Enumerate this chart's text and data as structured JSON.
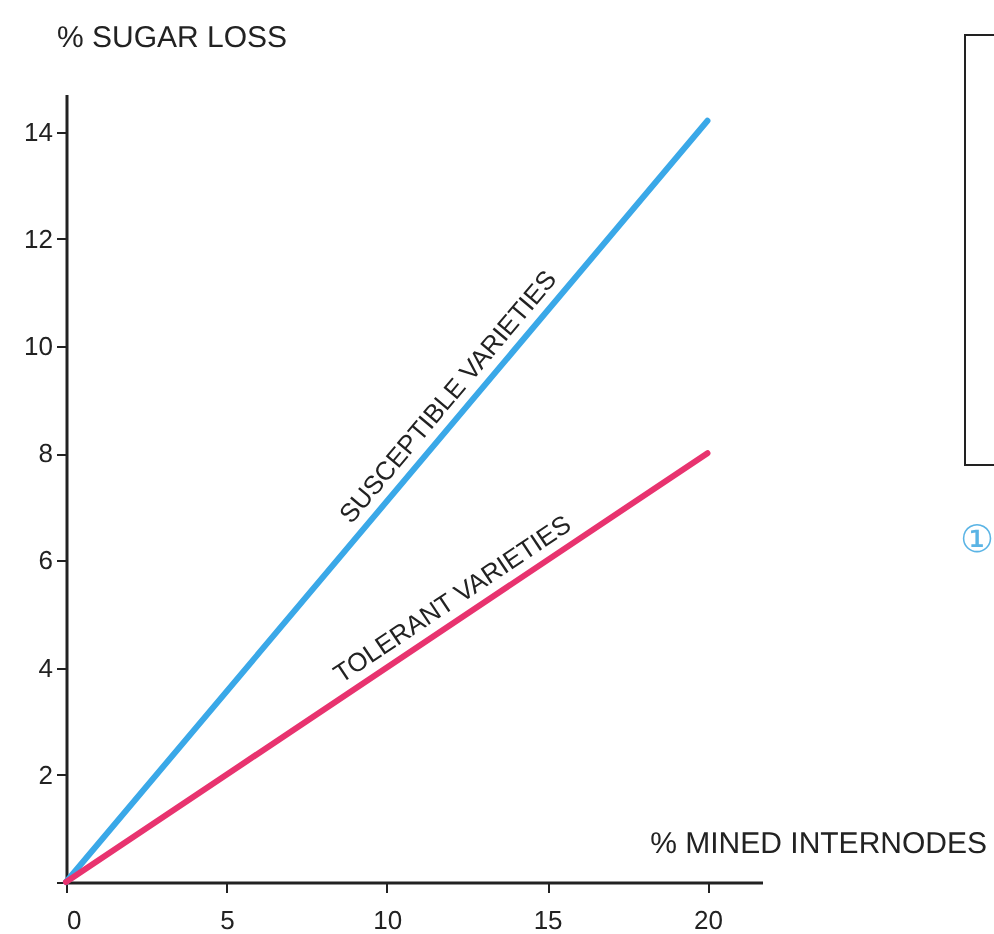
{
  "chart_data": {
    "type": "line",
    "xlabel": "% MINED INTERNODES",
    "ylabel": "% SUGAR LOSS",
    "xlim": [
      0,
      21.7
    ],
    "ylim": [
      0,
      14.7
    ],
    "xticks": [
      0,
      5,
      10,
      15,
      20
    ],
    "yticks": [
      {
        "value": 0,
        "label": null
      },
      2,
      4,
      6,
      8,
      10,
      12,
      14
    ],
    "x": [
      0,
      20
    ],
    "series": [
      {
        "name": "SUSCEPTIBLE VARIETIES",
        "color": "#3aa8e8",
        "values": [
          0,
          14.2
        ]
      },
      {
        "name": "TOLERANT VARIETIES",
        "color": "#e8336f",
        "values": [
          0,
          8
        ]
      }
    ],
    "annotations": [
      "①"
    ],
    "grid": false,
    "legend": false,
    "marker": "none",
    "line_style": "solid"
  }
}
